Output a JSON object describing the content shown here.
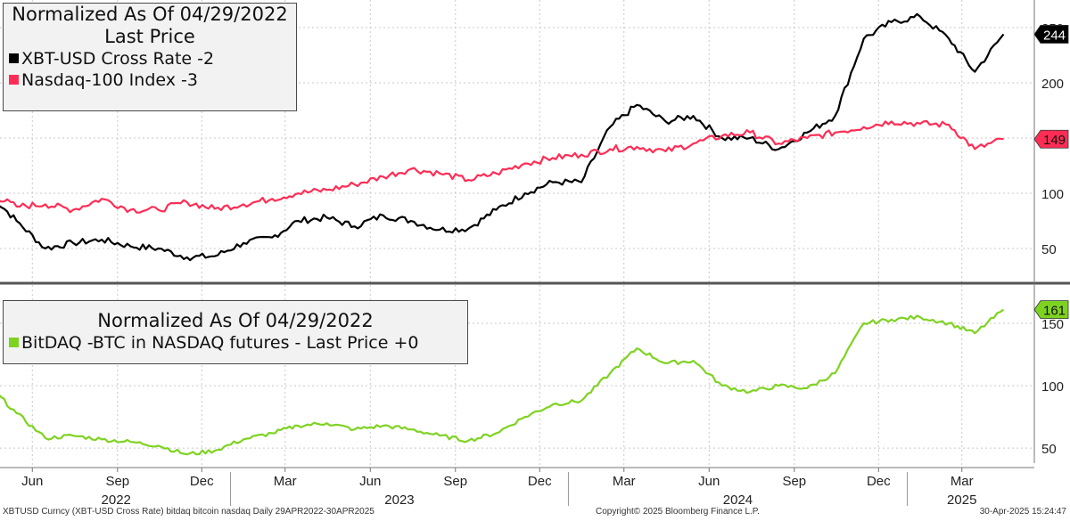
{
  "legend_top": {
    "title_line1": "Normalized As Of 04/29/2022",
    "title_line2": "Last Price",
    "items": [
      {
        "label": "XBT-USD Cross Rate -2",
        "color": "#000000"
      },
      {
        "label": "Nasdaq-100 Index   -3",
        "color": "#ff2d55"
      }
    ]
  },
  "legend_bottom": {
    "title": "Normalized As Of 04/29/2022",
    "items": [
      {
        "label": "BitDAQ -BTC in NASDAQ futures - Last Price  +0",
        "color": "#7ed321"
      }
    ]
  },
  "footer": {
    "left": "XBTUSD Curncy (XBT-USD Cross Rate) bitdaq bitcoin nasdaq  Daily 29APR2022-30APR2025",
    "mid": "Copyright© 2025 Bloomberg Finance L.P.",
    "right": "30-Apr-2025 15:24:47"
  },
  "chart_data": [
    {
      "type": "line",
      "panel": "top",
      "x_tick_labels": [
        "Jun",
        "Sep",
        "Dec",
        "Mar",
        "Jun",
        "Sep",
        "Dec",
        "Mar",
        "Jun",
        "Sep",
        "Dec",
        "Mar"
      ],
      "year_labels": [
        "2022",
        "2023",
        "2024",
        "2025"
      ],
      "y_tick_labels": [
        "50",
        "100",
        "150",
        "200",
        "250"
      ],
      "ylim": [
        25,
        275
      ],
      "grid": true,
      "legend_position": "top-left",
      "x": [
        "2022-04",
        "2022-05",
        "2022-06",
        "2022-07",
        "2022-08",
        "2022-09",
        "2022-10",
        "2022-11",
        "2022-12",
        "2023-01",
        "2023-02",
        "2023-03",
        "2023-04",
        "2023-05",
        "2023-06",
        "2023-07",
        "2023-08",
        "2023-09",
        "2023-10",
        "2023-11",
        "2023-12",
        "2024-01",
        "2024-02",
        "2024-03",
        "2024-04",
        "2024-05",
        "2024-06",
        "2024-07",
        "2024-08",
        "2024-09",
        "2024-10",
        "2024-11",
        "2024-12",
        "2025-01",
        "2025-02",
        "2025-03",
        "2025-04"
      ],
      "series": [
        {
          "name": "XBT-USD Cross Rate",
          "color": "#000000",
          "last_value_label": "244",
          "values": [
            100,
            75,
            50,
            55,
            58,
            52,
            50,
            42,
            43,
            55,
            60,
            75,
            78,
            70,
            80,
            75,
            67,
            68,
            85,
            100,
            110,
            110,
            160,
            180,
            165,
            170,
            150,
            150,
            140,
            155,
            170,
            240,
            255,
            260,
            240,
            210,
            244
          ]
        },
        {
          "name": "Nasdaq-100 Index",
          "color": "#ff2d55",
          "last_value_label": "149",
          "values": [
            100,
            88,
            90,
            85,
            95,
            85,
            85,
            92,
            86,
            90,
            95,
            100,
            103,
            108,
            115,
            122,
            118,
            112,
            118,
            127,
            132,
            135,
            140,
            142,
            138,
            145,
            152,
            155,
            145,
            150,
            155,
            160,
            165,
            163,
            162,
            140,
            149
          ]
        }
      ]
    },
    {
      "type": "line",
      "panel": "bottom",
      "y_tick_labels": [
        "50",
        "100",
        "150"
      ],
      "ylim": [
        38,
        175
      ],
      "grid": true,
      "legend_position": "top-left",
      "x": [
        "2022-04",
        "2022-05",
        "2022-06",
        "2022-07",
        "2022-08",
        "2022-09",
        "2022-10",
        "2022-11",
        "2022-12",
        "2023-01",
        "2023-02",
        "2023-03",
        "2023-04",
        "2023-05",
        "2023-06",
        "2023-07",
        "2023-08",
        "2023-09",
        "2023-10",
        "2023-11",
        "2023-12",
        "2024-01",
        "2024-02",
        "2024-03",
        "2024-04",
        "2024-05",
        "2024-06",
        "2024-07",
        "2024-08",
        "2024-09",
        "2024-10",
        "2024-11",
        "2024-12",
        "2025-01",
        "2025-02",
        "2025-03",
        "2025-04"
      ],
      "series": [
        {
          "name": "BitDAQ -BTC in NASDAQ futures - Last Price",
          "color": "#7ed321",
          "last_value_label": "161",
          "values": [
            100,
            78,
            58,
            60,
            57,
            55,
            52,
            45,
            48,
            57,
            62,
            68,
            70,
            65,
            68,
            65,
            60,
            56,
            62,
            75,
            85,
            88,
            110,
            130,
            118,
            120,
            100,
            95,
            100,
            98,
            110,
            150,
            153,
            155,
            150,
            142,
            161
          ]
        }
      ]
    }
  ]
}
